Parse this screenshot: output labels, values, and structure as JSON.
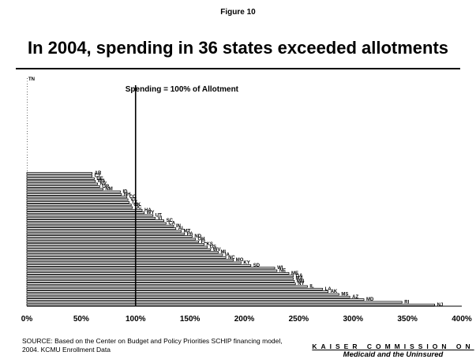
{
  "figure_label": "Figure 10",
  "title": "In 2004,  spending in 36 states exceeded allotments",
  "source_note": "SOURCE: Based on the Center on Budget and Policy Priorities SCHIP financing model, 2004.  KCMU Enrollment Data",
  "logo": {
    "line1": "KAISER COMMISSION ON",
    "line2": "Medicaid and the Uninsured"
  },
  "chart_data": {
    "type": "bar",
    "orientation": "horizontal",
    "title": "In 2004,  spending in 36 states exceeded allotments",
    "xlabel": "",
    "ylabel": "",
    "xlim": [
      0,
      400
    ],
    "x_ticks": [
      "0%",
      "50%",
      "100%",
      "150%",
      "200%",
      "250%",
      "300%",
      "350%",
      "400%"
    ],
    "reference_line": {
      "value": 100,
      "label": "Spending = 100% of Allotment"
    },
    "grid": false,
    "unlabeled_bars": [
      0,
      0,
      0,
      0,
      0,
      0,
      0,
      0,
      0,
      0,
      0,
      0,
      0,
      0,
      0,
      0,
      0,
      0,
      0,
      0,
      0,
      0,
      0,
      0,
      0,
      0,
      0,
      0,
      0,
      0,
      0,
      0,
      0,
      0,
      0,
      0
    ],
    "categories": [
      "AR",
      "CT",
      "DE",
      "WA",
      "NV",
      "OR",
      "NM",
      "ID",
      "NH",
      "CO",
      "VT",
      "TX",
      "OK",
      "DC",
      "HA",
      "WY",
      "UT",
      "VI",
      "SC",
      "CA",
      "IN",
      "AL",
      "MT",
      "PA",
      "ND",
      "OH",
      "FL",
      "KS",
      "US",
      "WV",
      "MI",
      "IA",
      "NC",
      "MO",
      "KY",
      "SD",
      "WI",
      "NE",
      "ME",
      "GA",
      "MA",
      "MN",
      "NY",
      "IL",
      "LA",
      "AK",
      "MS",
      "AZ",
      "MD",
      "RI",
      "NJ"
    ],
    "values": [
      60,
      60,
      62,
      63,
      65,
      67,
      70,
      86,
      87,
      92,
      93,
      94,
      96,
      97,
      106,
      108,
      116,
      118,
      126,
      128,
      135,
      137,
      142,
      145,
      152,
      155,
      158,
      163,
      166,
      169,
      176,
      180,
      183,
      190,
      197,
      206,
      228,
      230,
      241,
      245,
      245,
      246,
      247,
      258,
      272,
      277,
      287,
      297,
      310,
      345,
      375
    ],
    "first_label": "TN"
  },
  "colors": {
    "bar_fill": "#ffffff",
    "bar_stroke": "#000000",
    "text": "#000000"
  }
}
